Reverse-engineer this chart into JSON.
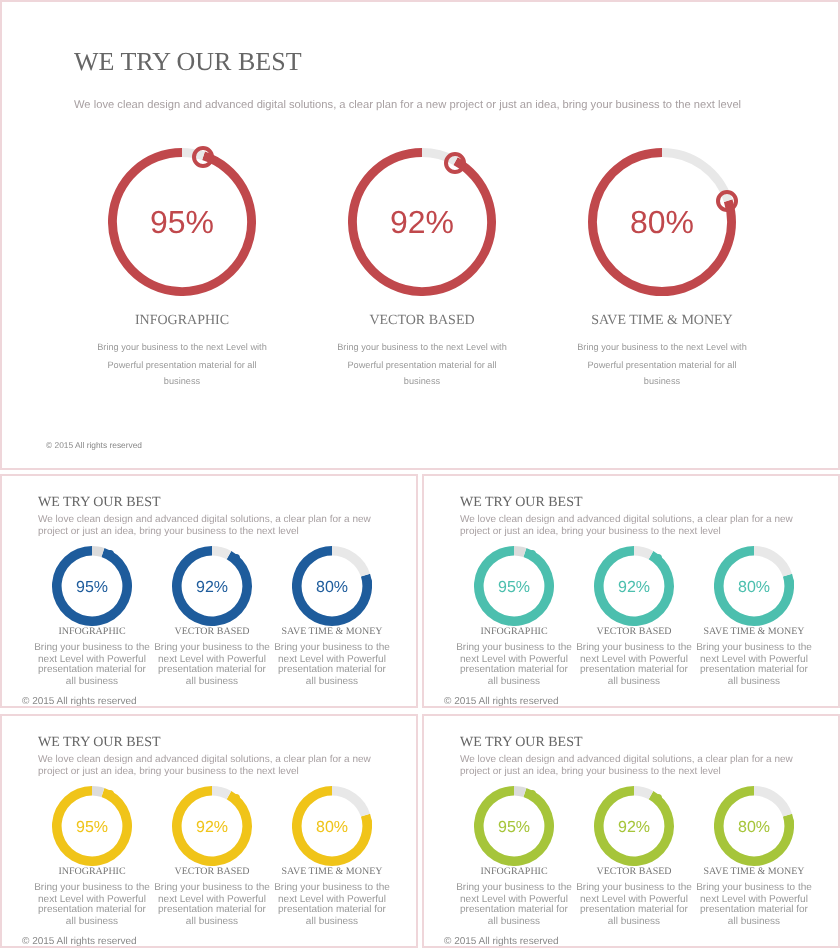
{
  "chart_data": [
    {
      "type": "other",
      "title": "WE TRY OUR BEST",
      "subtitle": "We love clean design and advanced digital solutions, a clear plan for a new project or just an idea, bring your business to the next level",
      "annotations": [
        "© 2015 All rights reserved"
      ]
    },
    {
      "type": "donut",
      "title": "INFOGRAPHIC",
      "categories": [
        null,
        null
      ],
      "values": [
        95,
        5
      ],
      "colors": [
        "#c0484c",
        "#e8e8e8"
      ],
      "value_labels": [
        "95%",
        null
      ],
      "annotations": [
        "Bring your business to the next Level with Powerful presentation material for all business"
      ]
    },
    {
      "type": "donut",
      "title": "VECTOR BASED",
      "categories": [
        null,
        null
      ],
      "values": [
        92,
        8
      ],
      "colors": [
        "#c0484c",
        "#e8e8e8"
      ],
      "value_labels": [
        "92%",
        null
      ],
      "annotations": [
        "Bring your business to the next Level with Powerful presentation material for all business"
      ]
    },
    {
      "type": "donut",
      "title": "SAVE TIME & MONEY",
      "categories": [
        null,
        null
      ],
      "values": [
        80,
        20
      ],
      "colors": [
        "#c0484c",
        "#e8e8e8"
      ],
      "value_labels": [
        "80%",
        null
      ],
      "annotations": [
        "Bring your business to the next Level with Powerful presentation material for all business"
      ]
    },
    {
      "type": "other",
      "title": "WE TRY OUR BEST",
      "subtitle": "We love clean design and advanced digital solutions, a clear plan for a new project or just an idea, bring your business to the next level",
      "annotations": [
        "© 2015 All rights reserved"
      ]
    },
    {
      "type": "donut",
      "title": "INFOGRAPHIC",
      "categories": [
        null,
        null
      ],
      "values": [
        95,
        5
      ],
      "colors": [
        "#1e5c9c",
        "#dcdcdc"
      ],
      "value_labels": [
        "95%",
        null
      ],
      "annotations": [
        "Bring your business to the next Level with Powerful presentation material for all business"
      ]
    },
    {
      "type": "donut",
      "title": "VECTOR BASED",
      "categories": [
        null,
        null
      ],
      "values": [
        92,
        8
      ],
      "colors": [
        "#1e5c9c",
        "#e8e8e8"
      ],
      "value_labels": [
        "92%",
        null
      ],
      "annotations": [
        "Bring your business to the next Level with Powerful presentation material for all business"
      ]
    },
    {
      "type": "donut",
      "title": "SAVE TIME & MONEY",
      "categories": [
        null,
        null
      ],
      "values": [
        80,
        20
      ],
      "colors": [
        "#1e5c9c",
        "#e8e8e8"
      ],
      "value_labels": [
        "80%",
        null
      ],
      "annotations": [
        "Bring your business to the next Level with Powerful presentation material for all business"
      ]
    },
    {
      "type": "other",
      "title": "WE TRY OUR BEST",
      "subtitle": "We love clean design and advanced digital solutions, a clear plan for a new project or just an idea, bring your business to the next level",
      "annotations": [
        "© 2015 All rights reserved"
      ]
    },
    {
      "type": "donut",
      "title": "INFOGRAPHIC",
      "categories": [
        null,
        null
      ],
      "values": [
        95,
        5
      ],
      "colors": [
        "#4cbfae",
        "#dcdcdc"
      ],
      "value_labels": [
        "95%",
        null
      ],
      "annotations": [
        "Bring your business to the next Level with Powerful presentation material for all business"
      ]
    },
    {
      "type": "donut",
      "title": "VECTOR BASED",
      "categories": [
        null,
        null
      ],
      "values": [
        92,
        8
      ],
      "colors": [
        "#4cbfae",
        "#e8e8e8"
      ],
      "value_labels": [
        "92%",
        null
      ],
      "annotations": [
        "Bring your business to the next Level with Powerful presentation material for all business"
      ]
    },
    {
      "type": "donut",
      "title": "SAVE TIME & MONEY",
      "categories": [
        null,
        null
      ],
      "values": [
        80,
        20
      ],
      "colors": [
        "#4cbfae",
        "#e8e8e8"
      ],
      "value_labels": [
        "80%",
        null
      ],
      "annotations": [
        "Bring your business to the next Level with Powerful presentation material for all business"
      ]
    },
    {
      "type": "other",
      "title": "WE TRY OUR BEST",
      "subtitle": "We love clean design and advanced digital solutions, a clear plan for a new project or just an idea, bring your business to the next level",
      "annotations": [
        "© 2015 All rights reserved"
      ]
    },
    {
      "type": "donut",
      "title": "INFOGRAPHIC",
      "categories": [
        null,
        null
      ],
      "values": [
        95,
        5
      ],
      "colors": [
        "#f0c419",
        "#dcdcdc"
      ],
      "value_labels": [
        "95%",
        null
      ],
      "annotations": [
        "Bring your business to the next Level with Powerful presentation material for all business"
      ]
    },
    {
      "type": "donut",
      "title": "VECTOR BASED",
      "categories": [
        null,
        null
      ],
      "values": [
        92,
        8
      ],
      "colors": [
        "#f0c419",
        "#e8e8e8"
      ],
      "value_labels": [
        "92%",
        null
      ],
      "annotations": [
        "Bring your business to the next Level with Powerful presentation material for all business"
      ]
    },
    {
      "type": "donut",
      "title": "SAVE TIME & MONEY",
      "categories": [
        null,
        null
      ],
      "values": [
        80,
        20
      ],
      "colors": [
        "#f0c419",
        "#e8e8e8"
      ],
      "value_labels": [
        "80%",
        null
      ],
      "annotations": [
        "Bring your business to the next Level with Powerful presentation material for all business"
      ]
    },
    {
      "type": "other",
      "title": "WE TRY OUR BEST",
      "subtitle": "We love clean design and advanced digital solutions, a clear plan for a new project or just an idea, bring your business to the next level",
      "annotations": [
        "© 2015 All rights reserved"
      ]
    },
    {
      "type": "donut",
      "title": "INFOGRAPHIC",
      "categories": [
        null,
        null
      ],
      "values": [
        95,
        5
      ],
      "colors": [
        "#a6c53a",
        "#dcdcdc"
      ],
      "value_labels": [
        "95%",
        null
      ],
      "annotations": [
        "Bring your business to the next Level with Powerful presentation material for all business"
      ]
    },
    {
      "type": "donut",
      "title": "VECTOR BASED",
      "categories": [
        null,
        null
      ],
      "values": [
        92,
        8
      ],
      "colors": [
        "#a6c53a",
        "#e8e8e8"
      ],
      "value_labels": [
        "92%",
        null
      ],
      "annotations": [
        "Bring your business to the next Level with Powerful presentation material for all business"
      ]
    },
    {
      "type": "donut",
      "title": "SAVE TIME & MONEY",
      "categories": [
        null,
        null
      ],
      "values": [
        80,
        20
      ],
      "colors": [
        "#a6c53a",
        "#e8e8e8"
      ],
      "value_labels": [
        "80%",
        null
      ],
      "annotations": [
        "Bring your business to the next Level with Powerful presentation material for all business"
      ]
    }
  ]
}
